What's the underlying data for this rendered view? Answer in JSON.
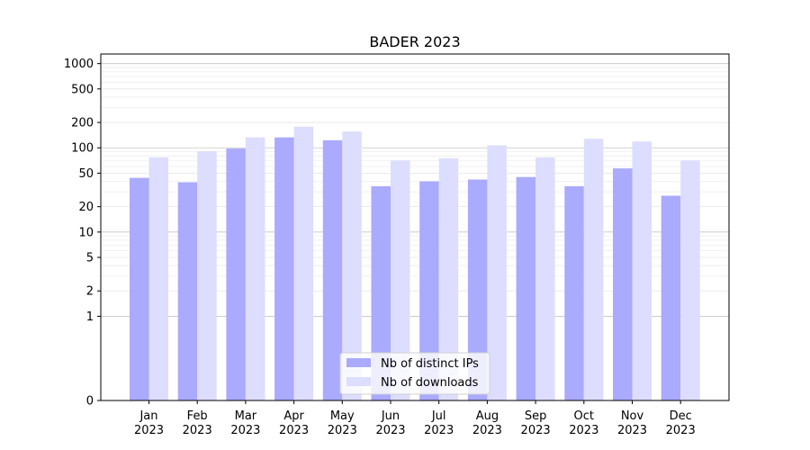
{
  "chart_data": {
    "type": "bar",
    "title": "BADER 2023",
    "xlabel": "",
    "ylabel": "",
    "yscale": "symlog",
    "ylim": [
      0,
      1300
    ],
    "yticks": [
      "0",
      "1",
      "2",
      "5",
      "10",
      "20",
      "50",
      "100",
      "200",
      "500",
      "1000"
    ],
    "categories": [
      {
        "month": "Jan",
        "year": "2023"
      },
      {
        "month": "Feb",
        "year": "2023"
      },
      {
        "month": "Mar",
        "year": "2023"
      },
      {
        "month": "Apr",
        "year": "2023"
      },
      {
        "month": "May",
        "year": "2023"
      },
      {
        "month": "Jun",
        "year": "2023"
      },
      {
        "month": "Jul",
        "year": "2023"
      },
      {
        "month": "Aug",
        "year": "2023"
      },
      {
        "month": "Sep",
        "year": "2023"
      },
      {
        "month": "Oct",
        "year": "2023"
      },
      {
        "month": "Nov",
        "year": "2023"
      },
      {
        "month": "Dec",
        "year": "2023"
      }
    ],
    "series": [
      {
        "name": "Nb of distinct IPs",
        "color": "#aaaaff",
        "values": [
          44,
          39,
          98,
          133,
          123,
          35,
          40,
          42,
          45,
          35,
          57,
          27
        ]
      },
      {
        "name": "Nb of downloads",
        "color": "#ddddff",
        "values": [
          77,
          91,
          133,
          178,
          156,
          71,
          75,
          107,
          77,
          128,
          119,
          71
        ]
      }
    ],
    "grid": "horizontal",
    "legend_position": "bottom-center"
  }
}
